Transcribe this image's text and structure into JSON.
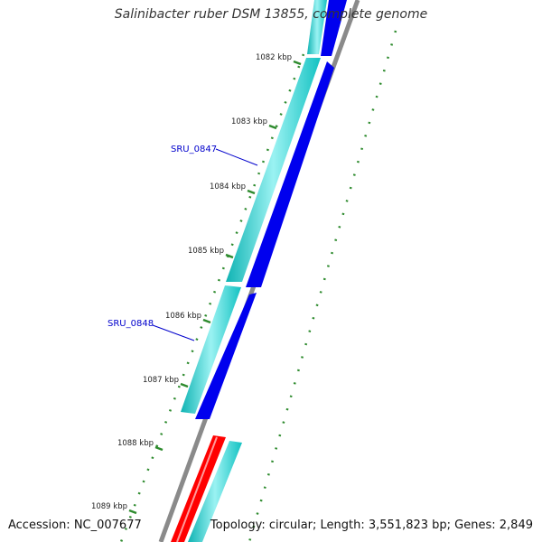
{
  "title": "Salinibacter ruber DSM 13855, complete genome",
  "footer": {
    "accession": "Accession: NC_007677",
    "summary": "Topology: circular; Length: 3,551,823 bp; Genes: 2,849"
  },
  "ticks": [
    {
      "label": "1082 kbp"
    },
    {
      "label": "1083 kbp"
    },
    {
      "label": "1084 kbp"
    },
    {
      "label": "1085 kbp"
    },
    {
      "label": "1086 kbp"
    },
    {
      "label": "1087 kbp"
    },
    {
      "label": "1088 kbp"
    },
    {
      "label": "1089 kbp"
    }
  ],
  "gene_labels": [
    {
      "text": "SRU_0847"
    },
    {
      "text": "SRU_0848"
    }
  ],
  "colors": {
    "cds_forward": "#1ecaca",
    "cds_forward_light": "#8eeeee",
    "gene_forward": "#0000ee",
    "gene_reverse": "#ff0000",
    "backbone": "#888888",
    "tick": "#2e8b2e",
    "gc_dots": "#2e8b2e",
    "label_link": "#0000cc"
  }
}
